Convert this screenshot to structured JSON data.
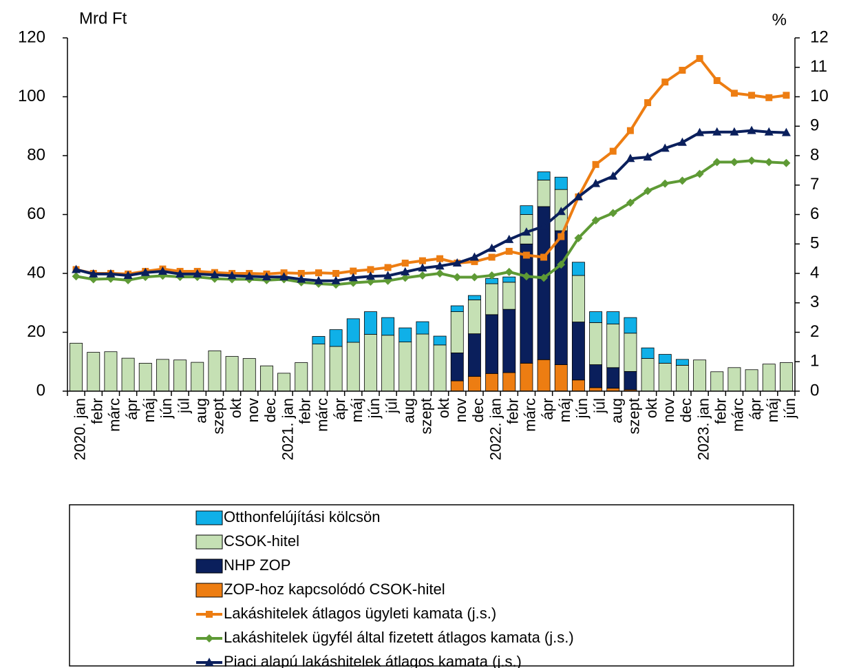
{
  "chart_data": {
    "type": "bar",
    "y_label": "Mrd Ft",
    "y2_label": "%",
    "categories": [
      "2020. jan",
      "febr",
      "márc",
      "ápr",
      "máj",
      "jún",
      "júl",
      "aug",
      "szept",
      "okt",
      "nov",
      "dec",
      "2021. jan",
      "febr",
      "márc",
      "ápr",
      "máj",
      "jún",
      "júl",
      "aug",
      "szept",
      "okt",
      "nov",
      "dec",
      "2022. jan",
      "febr",
      "márc",
      "ápr",
      "máj",
      "jún",
      "júl",
      "aug",
      "szept",
      "okt",
      "nov",
      "dec",
      "2023. jan",
      "febr",
      "márc",
      "ápr",
      "máj",
      "jún"
    ],
    "ylim": [
      0,
      120
    ],
    "yticks": [
      0,
      20,
      40,
      60,
      80,
      100,
      120
    ],
    "y2lim": [
      0,
      12
    ],
    "y2ticks": [
      0,
      1,
      2,
      3,
      4,
      5,
      6,
      7,
      8,
      9,
      10,
      11,
      12
    ],
    "stacked": true,
    "series": [
      {
        "name": "ZOP-hoz kapcsolódó CSOK-hitel",
        "type": "bar",
        "color": "#ed7d12",
        "values": [
          0,
          0,
          0,
          0,
          0,
          0,
          0,
          0,
          0,
          0,
          0,
          0,
          0,
          0,
          0,
          0,
          0,
          0,
          0,
          0,
          0,
          0,
          3.5,
          5,
          6,
          6.3,
          9.5,
          10.7,
          9,
          3.8,
          1.2,
          1,
          0.5,
          0,
          0,
          0,
          0,
          0,
          0,
          0,
          0,
          0
        ]
      },
      {
        "name": "NHP ZOP",
        "type": "bar",
        "color": "#0a1f5c",
        "values": [
          0,
          0,
          0,
          0,
          0,
          0,
          0,
          0,
          0,
          0,
          0,
          0,
          0,
          0,
          0,
          0,
          0,
          0,
          0,
          0,
          0,
          0,
          9.5,
          14.5,
          20,
          21.5,
          40.5,
          52,
          45.5,
          19.7,
          7.8,
          7,
          6.2,
          0,
          0,
          0,
          0,
          0,
          0,
          0,
          0,
          0
        ]
      },
      {
        "name": "CSOK-hitel",
        "type": "bar",
        "color": "#c5e0b4",
        "values": [
          16.3,
          13.2,
          13.4,
          11.2,
          9.5,
          10.8,
          10.6,
          9.8,
          13.7,
          11.8,
          11.1,
          8.6,
          6.1,
          9.7,
          16,
          15.2,
          16.6,
          19.3,
          19,
          16.7,
          19.4,
          15.7,
          14,
          11.5,
          10.5,
          9.2,
          10,
          9,
          14,
          15.8,
          14.3,
          14.8,
          13,
          11.1,
          9.5,
          8.8,
          10.6,
          6.6,
          8,
          7.3,
          9.2,
          9.7
        ]
      },
      {
        "name": "Otthonfelújítási kölcsön",
        "type": "bar",
        "color": "#0fb0e8",
        "values": [
          0,
          0,
          0,
          0,
          0,
          0,
          0,
          0,
          0,
          0,
          0,
          0,
          0,
          0,
          2.6,
          5.7,
          8,
          7.7,
          6,
          4.8,
          4.2,
          3,
          2,
          1.5,
          1.8,
          1.8,
          3,
          2.8,
          4.2,
          4.5,
          3.7,
          4.2,
          5.3,
          3.6,
          3,
          2,
          0,
          0,
          0,
          0,
          0,
          0
        ]
      },
      {
        "name": "Lakáshitelek átlagos ügyleti kamata (j.s.)",
        "type": "line",
        "axis": "y2",
        "marker": "square",
        "color": "#ed7d12",
        "values": [
          4.13,
          4.0,
          4.0,
          3.98,
          4.07,
          4.15,
          4.07,
          4.07,
          4.03,
          4.0,
          4.0,
          3.98,
          4.02,
          4.0,
          4.02,
          4.0,
          4.08,
          4.13,
          4.2,
          4.35,
          4.43,
          4.5,
          4.35,
          4.4,
          4.55,
          4.75,
          4.62,
          4.55,
          5.25,
          6.6,
          7.7,
          8.15,
          8.85,
          9.8,
          10.5,
          10.9,
          11.3,
          10.55,
          10.12,
          10.05,
          9.97,
          10.05
        ]
      },
      {
        "name": "Lakáshitelek ügyfél által fizetett átlagos kamata (j.s.)",
        "type": "line",
        "axis": "y2",
        "marker": "diamond",
        "color": "#5e9a35",
        "values": [
          3.9,
          3.8,
          3.82,
          3.77,
          3.88,
          3.92,
          3.88,
          3.88,
          3.82,
          3.8,
          3.8,
          3.77,
          3.8,
          3.7,
          3.65,
          3.62,
          3.68,
          3.72,
          3.75,
          3.85,
          3.93,
          4.0,
          3.87,
          3.87,
          3.93,
          4.05,
          3.9,
          3.85,
          4.3,
          5.2,
          5.8,
          6.05,
          6.4,
          6.8,
          7.05,
          7.15,
          7.38,
          7.78,
          7.78,
          7.83,
          7.78,
          7.75
        ]
      },
      {
        "name": "Piaci alapú lakáshitelek átlagos kamata (j.s.)",
        "type": "line",
        "axis": "y2",
        "marker": "triangle",
        "color": "#0a1f5c",
        "values": [
          4.13,
          3.98,
          3.98,
          3.93,
          4.03,
          4.07,
          3.98,
          3.98,
          3.95,
          3.92,
          3.9,
          3.88,
          3.88,
          3.8,
          3.75,
          3.75,
          3.85,
          3.9,
          3.92,
          4.05,
          4.18,
          4.25,
          4.35,
          4.55,
          4.85,
          5.15,
          5.4,
          5.6,
          6.1,
          6.6,
          7.05,
          7.3,
          7.9,
          7.95,
          8.25,
          8.45,
          8.78,
          8.8,
          8.8,
          8.85,
          8.8,
          8.78
        ]
      }
    ]
  }
}
